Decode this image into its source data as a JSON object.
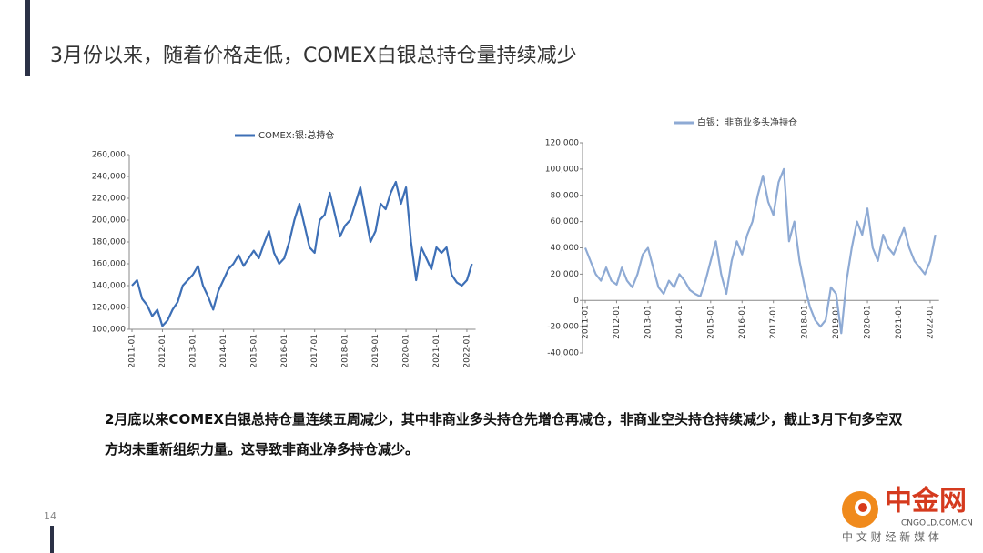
{
  "slide": {
    "title": "3月份以来，随着价格走低，COMEX白银总持仓量持续减少",
    "body": "2月底以来COMEX白银总持仓量连续五周减少，其中非商业多头持仓先增仓再减仓，非商业空头持仓持续减少，截止3月下旬多空双方均未重新组织力量。这导致非商业净多持仓减少。",
    "page_number": "14"
  },
  "logo": {
    "name": "中金网",
    "domain": "CNGOLD.COM.CN",
    "slogan": "中 文 财 经 新 媒 体"
  },
  "chart_data": [
    {
      "type": "line",
      "x": [
        "2011-01",
        "2011-03",
        "2011-05",
        "2011-07",
        "2011-09",
        "2011-11",
        "2012-01",
        "2012-03",
        "2012-05",
        "2012-07",
        "2012-09",
        "2012-11",
        "2013-01",
        "2013-03",
        "2013-05",
        "2013-07",
        "2013-09",
        "2013-11",
        "2014-01",
        "2014-03",
        "2014-05",
        "2014-07",
        "2014-09",
        "2014-11",
        "2015-01",
        "2015-03",
        "2015-05",
        "2015-07",
        "2015-09",
        "2015-11",
        "2016-01",
        "2016-03",
        "2016-05",
        "2016-07",
        "2016-09",
        "2016-11",
        "2017-01",
        "2017-03",
        "2017-05",
        "2017-07",
        "2017-09",
        "2017-11",
        "2018-01",
        "2018-03",
        "2018-05",
        "2018-07",
        "2018-09",
        "2018-11",
        "2019-01",
        "2019-03",
        "2019-05",
        "2019-07",
        "2019-09",
        "2019-11",
        "2020-01",
        "2020-03",
        "2020-05",
        "2020-07",
        "2020-09",
        "2020-11",
        "2021-01",
        "2021-03",
        "2021-05",
        "2021-07",
        "2021-09",
        "2021-11",
        "2022-01",
        "2022-03"
      ],
      "series": [
        {
          "name": "COMEX:银:总持仓",
          "color": "#3d6fb6",
          "values": [
            140000,
            145000,
            128000,
            122000,
            112000,
            118000,
            103000,
            108000,
            118000,
            125000,
            140000,
            145000,
            150000,
            158000,
            140000,
            130000,
            118000,
            135000,
            145000,
            155000,
            160000,
            168000,
            158000,
            165000,
            172000,
            165000,
            178000,
            190000,
            170000,
            160000,
            165000,
            180000,
            200000,
            215000,
            195000,
            175000,
            170000,
            200000,
            205000,
            225000,
            205000,
            185000,
            195000,
            200000,
            215000,
            230000,
            205000,
            180000,
            190000,
            215000,
            210000,
            225000,
            235000,
            215000,
            230000,
            180000,
            145000,
            175000,
            165000,
            155000,
            175000,
            170000,
            175000,
            150000,
            143000,
            140000,
            145000,
            160000
          ]
        }
      ],
      "ylim": [
        100000,
        260000
      ],
      "yticks": [
        {
          "value": 100000,
          "label": "100,000"
        },
        {
          "value": 120000,
          "label": "120,000"
        },
        {
          "value": 140000,
          "label": "140,000"
        },
        {
          "value": 160000,
          "label": "160,000"
        },
        {
          "value": 180000,
          "label": "180,000"
        },
        {
          "value": 200000,
          "label": "200,000"
        },
        {
          "value": 220000,
          "label": "220,000"
        },
        {
          "value": 240000,
          "label": "240,000"
        },
        {
          "value": 260000,
          "label": "260,000"
        }
      ],
      "xticks": [
        "2011-01",
        "2012-01",
        "2013-01",
        "2014-01",
        "2015-01",
        "2016-01",
        "2017-01",
        "2018-01",
        "2019-01",
        "2020-01",
        "2021-01",
        "2022-01"
      ]
    },
    {
      "type": "line",
      "x": [
        "2011-01",
        "2011-03",
        "2011-05",
        "2011-07",
        "2011-09",
        "2011-11",
        "2012-01",
        "2012-03",
        "2012-05",
        "2012-07",
        "2012-09",
        "2012-11",
        "2013-01",
        "2013-03",
        "2013-05",
        "2013-07",
        "2013-09",
        "2013-11",
        "2014-01",
        "2014-03",
        "2014-05",
        "2014-07",
        "2014-09",
        "2014-11",
        "2015-01",
        "2015-03",
        "2015-05",
        "2015-07",
        "2015-09",
        "2015-11",
        "2016-01",
        "2016-03",
        "2016-05",
        "2016-07",
        "2016-09",
        "2016-11",
        "2017-01",
        "2017-03",
        "2017-05",
        "2017-07",
        "2017-09",
        "2017-11",
        "2018-01",
        "2018-03",
        "2018-05",
        "2018-07",
        "2018-09",
        "2018-11",
        "2019-01",
        "2019-03",
        "2019-05",
        "2019-07",
        "2019-09",
        "2019-11",
        "2020-01",
        "2020-03",
        "2020-05",
        "2020-07",
        "2020-09",
        "2020-11",
        "2021-01",
        "2021-03",
        "2021-05",
        "2021-07",
        "2021-09",
        "2021-11",
        "2022-01",
        "2022-03"
      ],
      "series": [
        {
          "name": "白银：非商业多头净持仓",
          "color": "#8eaad4",
          "values": [
            40000,
            30000,
            20000,
            15000,
            25000,
            15000,
            12000,
            25000,
            15000,
            10000,
            20000,
            35000,
            40000,
            25000,
            10000,
            5000,
            15000,
            10000,
            20000,
            15000,
            8000,
            5000,
            3000,
            15000,
            30000,
            45000,
            20000,
            5000,
            30000,
            45000,
            35000,
            50000,
            60000,
            80000,
            95000,
            75000,
            65000,
            90000,
            100000,
            45000,
            60000,
            30000,
            10000,
            -5000,
            -15000,
            -20000,
            -15000,
            10000,
            5000,
            -25000,
            15000,
            40000,
            60000,
            50000,
            70000,
            40000,
            30000,
            50000,
            40000,
            35000,
            45000,
            55000,
            40000,
            30000,
            25000,
            20000,
            30000,
            50000
          ]
        }
      ],
      "ylim": [
        -40000,
        120000
      ],
      "yticks": [
        {
          "value": -40000,
          "label": "-40,000"
        },
        {
          "value": -20000,
          "label": "-20,000"
        },
        0,
        {
          "value": 20000,
          "label": "20,000"
        },
        {
          "value": 40000,
          "label": "40,000"
        },
        {
          "value": 60000,
          "label": "60,000"
        },
        {
          "value": 80000,
          "label": "80,000"
        },
        {
          "value": 100000,
          "label": "100,000"
        },
        {
          "value": 120000,
          "label": "120,000"
        }
      ],
      "xticks": [
        "2011-01",
        "2012-01",
        "2013-01",
        "2014-01",
        "2015-01",
        "2016-01",
        "2017-01",
        "2018-01",
        "2019-01",
        "2020-01",
        "2021-01",
        "2022-01"
      ]
    }
  ]
}
